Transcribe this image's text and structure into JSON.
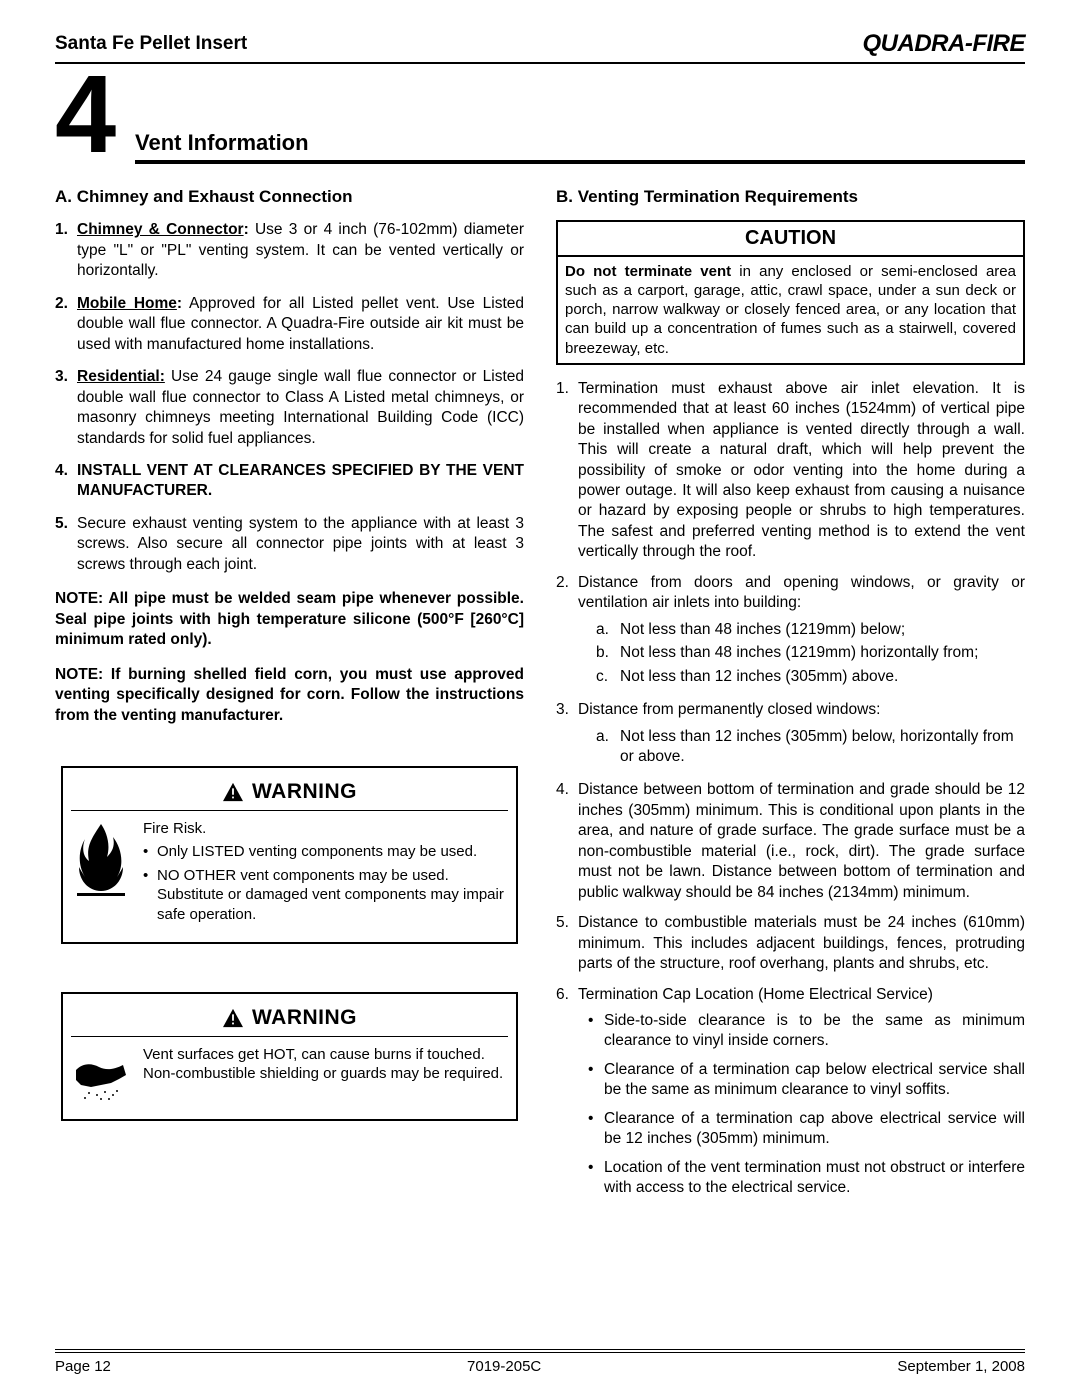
{
  "header": {
    "product": "Santa Fe Pellet Insert",
    "brand": "QUADRA-FIRE"
  },
  "section": {
    "number": "4",
    "title": "Vent Information"
  },
  "colA": {
    "heading": "A.  Chimney and Exhaust Connection",
    "items": [
      {
        "n": "1.",
        "label": "Chimney & Connector",
        "sep": ":",
        "text": "  Use 3 or 4 inch (76-102mm) diameter type \"L\" or \"PL\" venting system.  It can be vented vertically or horizontally."
      },
      {
        "n": "2.",
        "label": "Mobile Home",
        "sep": ":",
        "text": " Approved for all Listed pellet vent.  Use Listed double wall flue connector.  A Quadra-Fire outside air kit must be used with manufactured home installations."
      },
      {
        "n": "3.",
        "label": "Residential:",
        "sep": "",
        "text": "  Use 24 gauge single wall flue connector or Listed double wall flue connector to Class A Listed metal chimneys, or masonry chimneys meeting International Building Code (ICC)  standards for solid fuel appliances."
      },
      {
        "n": "4.",
        "label": "",
        "sep": "",
        "bold": true,
        "text": "INSTALL VENT AT CLEARANCES SPECIFIED BY THE VENT MANUFACTURER."
      },
      {
        "n": "5.",
        "label": "",
        "sep": "",
        "text": "Secure exhaust venting system to the appliance with at least 3 screws.  Also secure all connector pipe joints with at least 3 screws through each joint."
      }
    ],
    "note1": "NOTE: All pipe must be welded seam pipe whenever possible.  Seal pipe joints with high temperature silicone (500°F [260°C] minimum rated only).",
    "note2": "NOTE:  If burning shelled field corn, you must use approved venting specifically designed for corn.  Follow the instructions from the venting manufacturer."
  },
  "warning1": {
    "label": "WARNING",
    "lead": "Fire Risk.",
    "bullets": [
      "Only LISTED venting components may be used.",
      "NO OTHER vent components may be used. Substitute or damaged vent components may impair safe operation."
    ]
  },
  "warning2": {
    "label": "WARNING",
    "text": "Vent surfaces get HOT, can cause burns if touched.  Non-combustible shielding or guards may be required."
  },
  "colB": {
    "heading": "B.  Venting Termination Requirements",
    "caution": {
      "title": "CAUTION",
      "lead": "Do not terminate vent",
      "rest": " in any enclosed or semi-enclosed area such as a carport, garage, attic, crawl space, under a sun deck or porch, narrow walkway or closely fenced area, or any location that can build up a concentration of fumes such as a stairwell, covered breezeway, etc."
    },
    "items": [
      {
        "n": "1.",
        "text": "Termination must exhaust above air inlet elevation.  It is recommended that at least 60 inches (1524mm) of vertical pipe be installed when appliance is vented directly through a wall.  This will create a natural draft, which will help prevent the possibility of smoke or odor venting into the home during a power outage.  It will also keep exhaust from causing a nuisance or hazard by exposing people or shrubs to high temperatures.  The safest and preferred venting method is to extend the vent vertically through the roof."
      },
      {
        "n": "2.",
        "text": "Distance from doors and opening windows, or gravity or ventilation air inlets into building:",
        "sub": [
          {
            "l": "a.",
            "t": "Not less than 48 inches (1219mm) below;"
          },
          {
            "l": "b.",
            "t": "Not less than 48 inches (1219mm) horizontally from;"
          },
          {
            "l": "c.",
            "t": "Not less than 12 inches (305mm) above."
          }
        ]
      },
      {
        "n": "3.",
        "text": "Distance from permanently closed windows:",
        "sub": [
          {
            "l": "a.",
            "t": "Not less than 12 inches (305mm) below, horizontally from or above."
          }
        ]
      },
      {
        "n": "4.",
        "text": "Distance between bottom of termination and grade should be 12 inches (305mm) minimum.  This is conditional upon plants in the area, and nature of grade surface.  The grade surface must be a non-combustible material (i.e., rock, dirt).  The grade surface must not be lawn.  Distance between bottom of termination and public walkway should be 84 inches (2134mm) minimum."
      },
      {
        "n": "5.",
        "text": "Distance to combustible materials must be 24 inches (610mm) minimum.  This includes adjacent buildings, fences, protruding parts of the structure, roof overhang, plants and shrubs, etc."
      },
      {
        "n": "6.",
        "text": "Termination Cap Location (Home Electrical Service)",
        "subul": [
          "Side-to-side clearance is to be the same as minimum clearance to vinyl inside corners.",
          "Clearance of a termination cap below electrical service shall be the same as minimum clearance to vinyl soffits.",
          "Clearance of a termination cap above electrical service will be 12 inches (305mm) minimum.",
          "Location of the vent termination must not obstruct or interfere with access to the electrical service."
        ]
      }
    ]
  },
  "footer": {
    "left": "Page  12",
    "center": "7019-205C",
    "right": "September 1, 2008"
  }
}
